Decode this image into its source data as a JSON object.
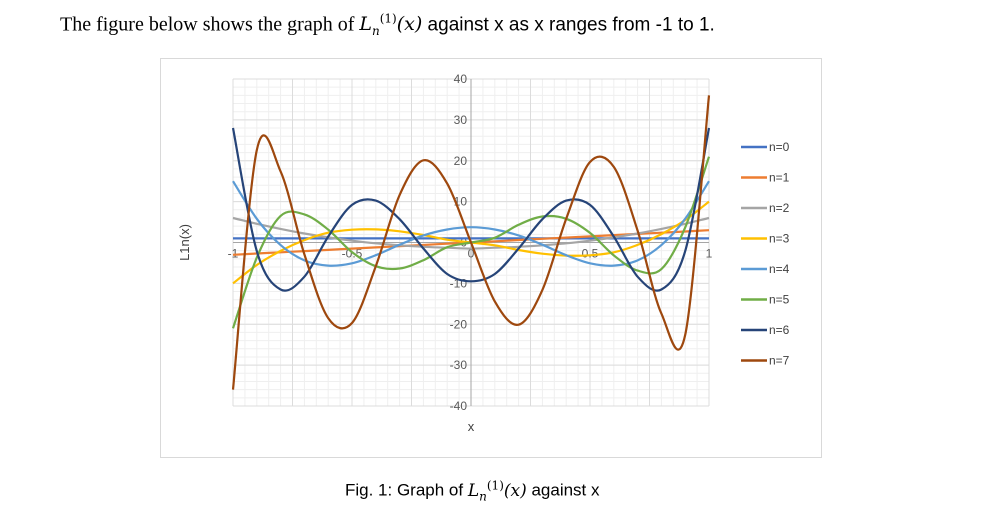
{
  "intro": {
    "prefix": "The figure below shows the graph of ",
    "symbol": "L",
    "subscript": "n",
    "superscript": "(1)",
    "arg": "(x)",
    "suffix": " against x as x ranges from -1 to 1."
  },
  "caption": {
    "prefix": "Fig. 1: Graph of ",
    "symbol": "L",
    "subscript": "n",
    "superscript": "(1)",
    "arg": "(x)",
    "suffix": " against x"
  },
  "chart_data": {
    "type": "line",
    "xlabel": "x",
    "ylabel": "L1n(x)",
    "xlim": [
      -1,
      1
    ],
    "ylim": [
      -40,
      40
    ],
    "x_ticks": [
      "-1",
      "-0.5",
      "0",
      "0.5",
      "1"
    ],
    "y_ticks": [
      "40",
      "30",
      "20",
      "10",
      "0",
      "-10",
      "-20",
      "-30",
      "-40"
    ],
    "grid": true,
    "legend_position": "right",
    "x": [
      -1,
      -0.9,
      -0.8,
      -0.7,
      -0.6,
      -0.5,
      -0.4,
      -0.3,
      -0.2,
      -0.1,
      0,
      0.1,
      0.2,
      0.3,
      0.4,
      0.5,
      0.6,
      0.7,
      0.8,
      0.9,
      1
    ],
    "series": [
      {
        "name": "n=0",
        "color": "#4472c4",
        "values": [
          1,
          1,
          1,
          1,
          1,
          1,
          1,
          1,
          1,
          1,
          1,
          1,
          1,
          1,
          1,
          1,
          1,
          1,
          1,
          1,
          1
        ]
      },
      {
        "name": "n=1",
        "color": "#ed7d31",
        "values": [
          -3,
          -2.7,
          -2.4,
          -2.1,
          -1.8,
          -1.5,
          -1.2,
          -0.9,
          -0.6,
          -0.3,
          0,
          0.3,
          0.6,
          0.9,
          1.2,
          1.5,
          1.8,
          2.1,
          2.4,
          2.7,
          3
        ]
      },
      {
        "name": "n=2",
        "color": "#a5a5a5",
        "values": [
          6,
          4.58,
          3.32,
          2.21,
          1.25,
          0.44,
          -0.2,
          -0.68,
          -1.04,
          -1.28,
          -1.5,
          -1.28,
          -1.04,
          -0.68,
          -0.2,
          0.44,
          1.25,
          2.21,
          3.32,
          4.58,
          6
        ]
      },
      {
        "name": "n=3",
        "color": "#ffc000",
        "values": [
          -10,
          -5.5,
          -2.05,
          0.59,
          2.4,
          3.13,
          3.21,
          2.73,
          1.84,
          0.69,
          0,
          -0.69,
          -1.84,
          -2.73,
          -3.21,
          -3.13,
          -2.4,
          -0.59,
          2.05,
          5.5,
          10
        ]
      },
      {
        "name": "n=4",
        "color": "#5b9bd5",
        "values": [
          15,
          5.79,
          -0.63,
          -4.37,
          -5.65,
          -5.08,
          -3.1,
          -0.53,
          1.74,
          3.18,
          3.75,
          3.18,
          1.74,
          -0.53,
          -3.1,
          -5.08,
          -5.65,
          -4.37,
          -0.63,
          5.79,
          15
        ]
      },
      {
        "name": "n=5",
        "color": "#70ad47",
        "values": [
          -21,
          -3.7,
          6.5,
          6.87,
          3.15,
          -2.34,
          -5.81,
          -6.36,
          -4.34,
          -1.14,
          0,
          1.14,
          4.34,
          6.36,
          5.81,
          2.34,
          -3.15,
          -6.87,
          -6.5,
          3.7,
          21
        ]
      },
      {
        "name": "n=6",
        "color": "#264478",
        "values": [
          28,
          -2.1,
          -11.5,
          -8.36,
          1.45,
          9.2,
          10.24,
          5.69,
          -1.46,
          -7.71,
          -9.5,
          -7.71,
          -1.46,
          5.69,
          10.24,
          9.2,
          1.45,
          -8.36,
          -11.5,
          -2.1,
          28
        ]
      },
      {
        "name": "n=7",
        "color": "#9e480e",
        "values": [
          -36,
          22.6,
          17.4,
          -2.9,
          -18.5,
          -19.7,
          -5.8,
          11.6,
          20.1,
          14.4,
          0,
          -14.4,
          -20.1,
          -11.6,
          5.8,
          19.7,
          18.5,
          2.9,
          -17.4,
          -22.6,
          36
        ]
      }
    ]
  }
}
